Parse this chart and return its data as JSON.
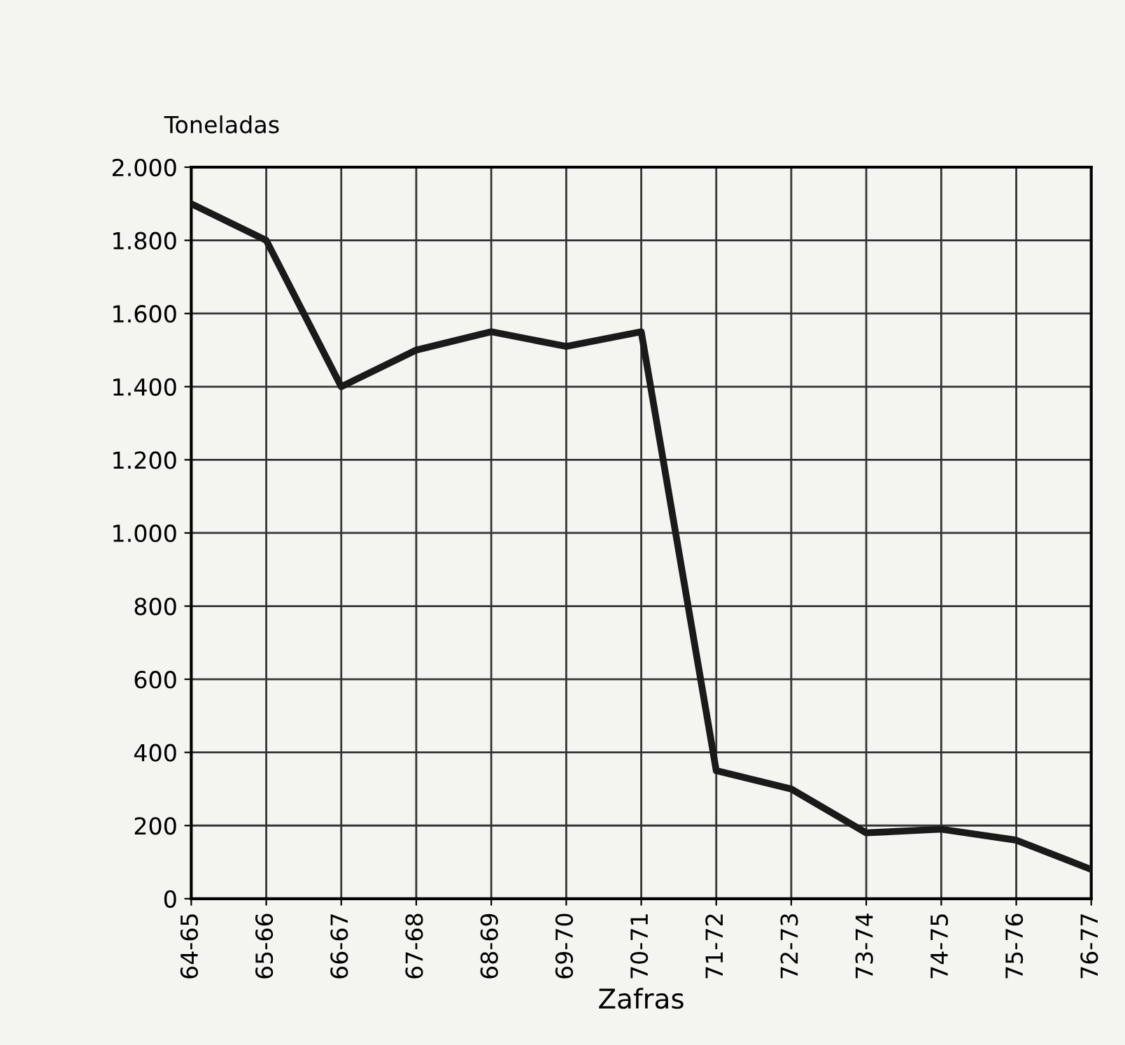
{
  "chart_data": {
    "type": "line",
    "ylabel": "Toneladas",
    "xlabel": "Zafras",
    "categories": [
      "64-65",
      "65-66",
      "66-67",
      "67-68",
      "68-69",
      "69-70",
      "70-71",
      "71-72",
      "72-73",
      "73-74",
      "74-75",
      "75-76",
      "76-77"
    ],
    "series": [
      {
        "color": "#1a1a1a",
        "values": [
          1900,
          1800,
          1400,
          1500,
          1550,
          1510,
          1550,
          350,
          300,
          180,
          190,
          160,
          80
        ]
      }
    ],
    "ylim": [
      0,
      2000
    ],
    "yticks": [
      {
        "value": 0,
        "label": "0"
      },
      {
        "value": 200,
        "label": "200"
      },
      {
        "value": 400,
        "label": "400"
      },
      {
        "value": 600,
        "label": "600"
      },
      {
        "value": 800,
        "label": "800"
      },
      {
        "value": 1000,
        "label": "1.000"
      },
      {
        "value": 1200,
        "label": "1.200"
      },
      {
        "value": 1400,
        "label": "1.400"
      },
      {
        "value": 1600,
        "label": "1.600"
      },
      {
        "value": 1800,
        "label": "1.800"
      },
      {
        "value": 2000,
        "label": "2.000"
      }
    ],
    "grid": true,
    "marker": "none",
    "line_style": "solid"
  }
}
